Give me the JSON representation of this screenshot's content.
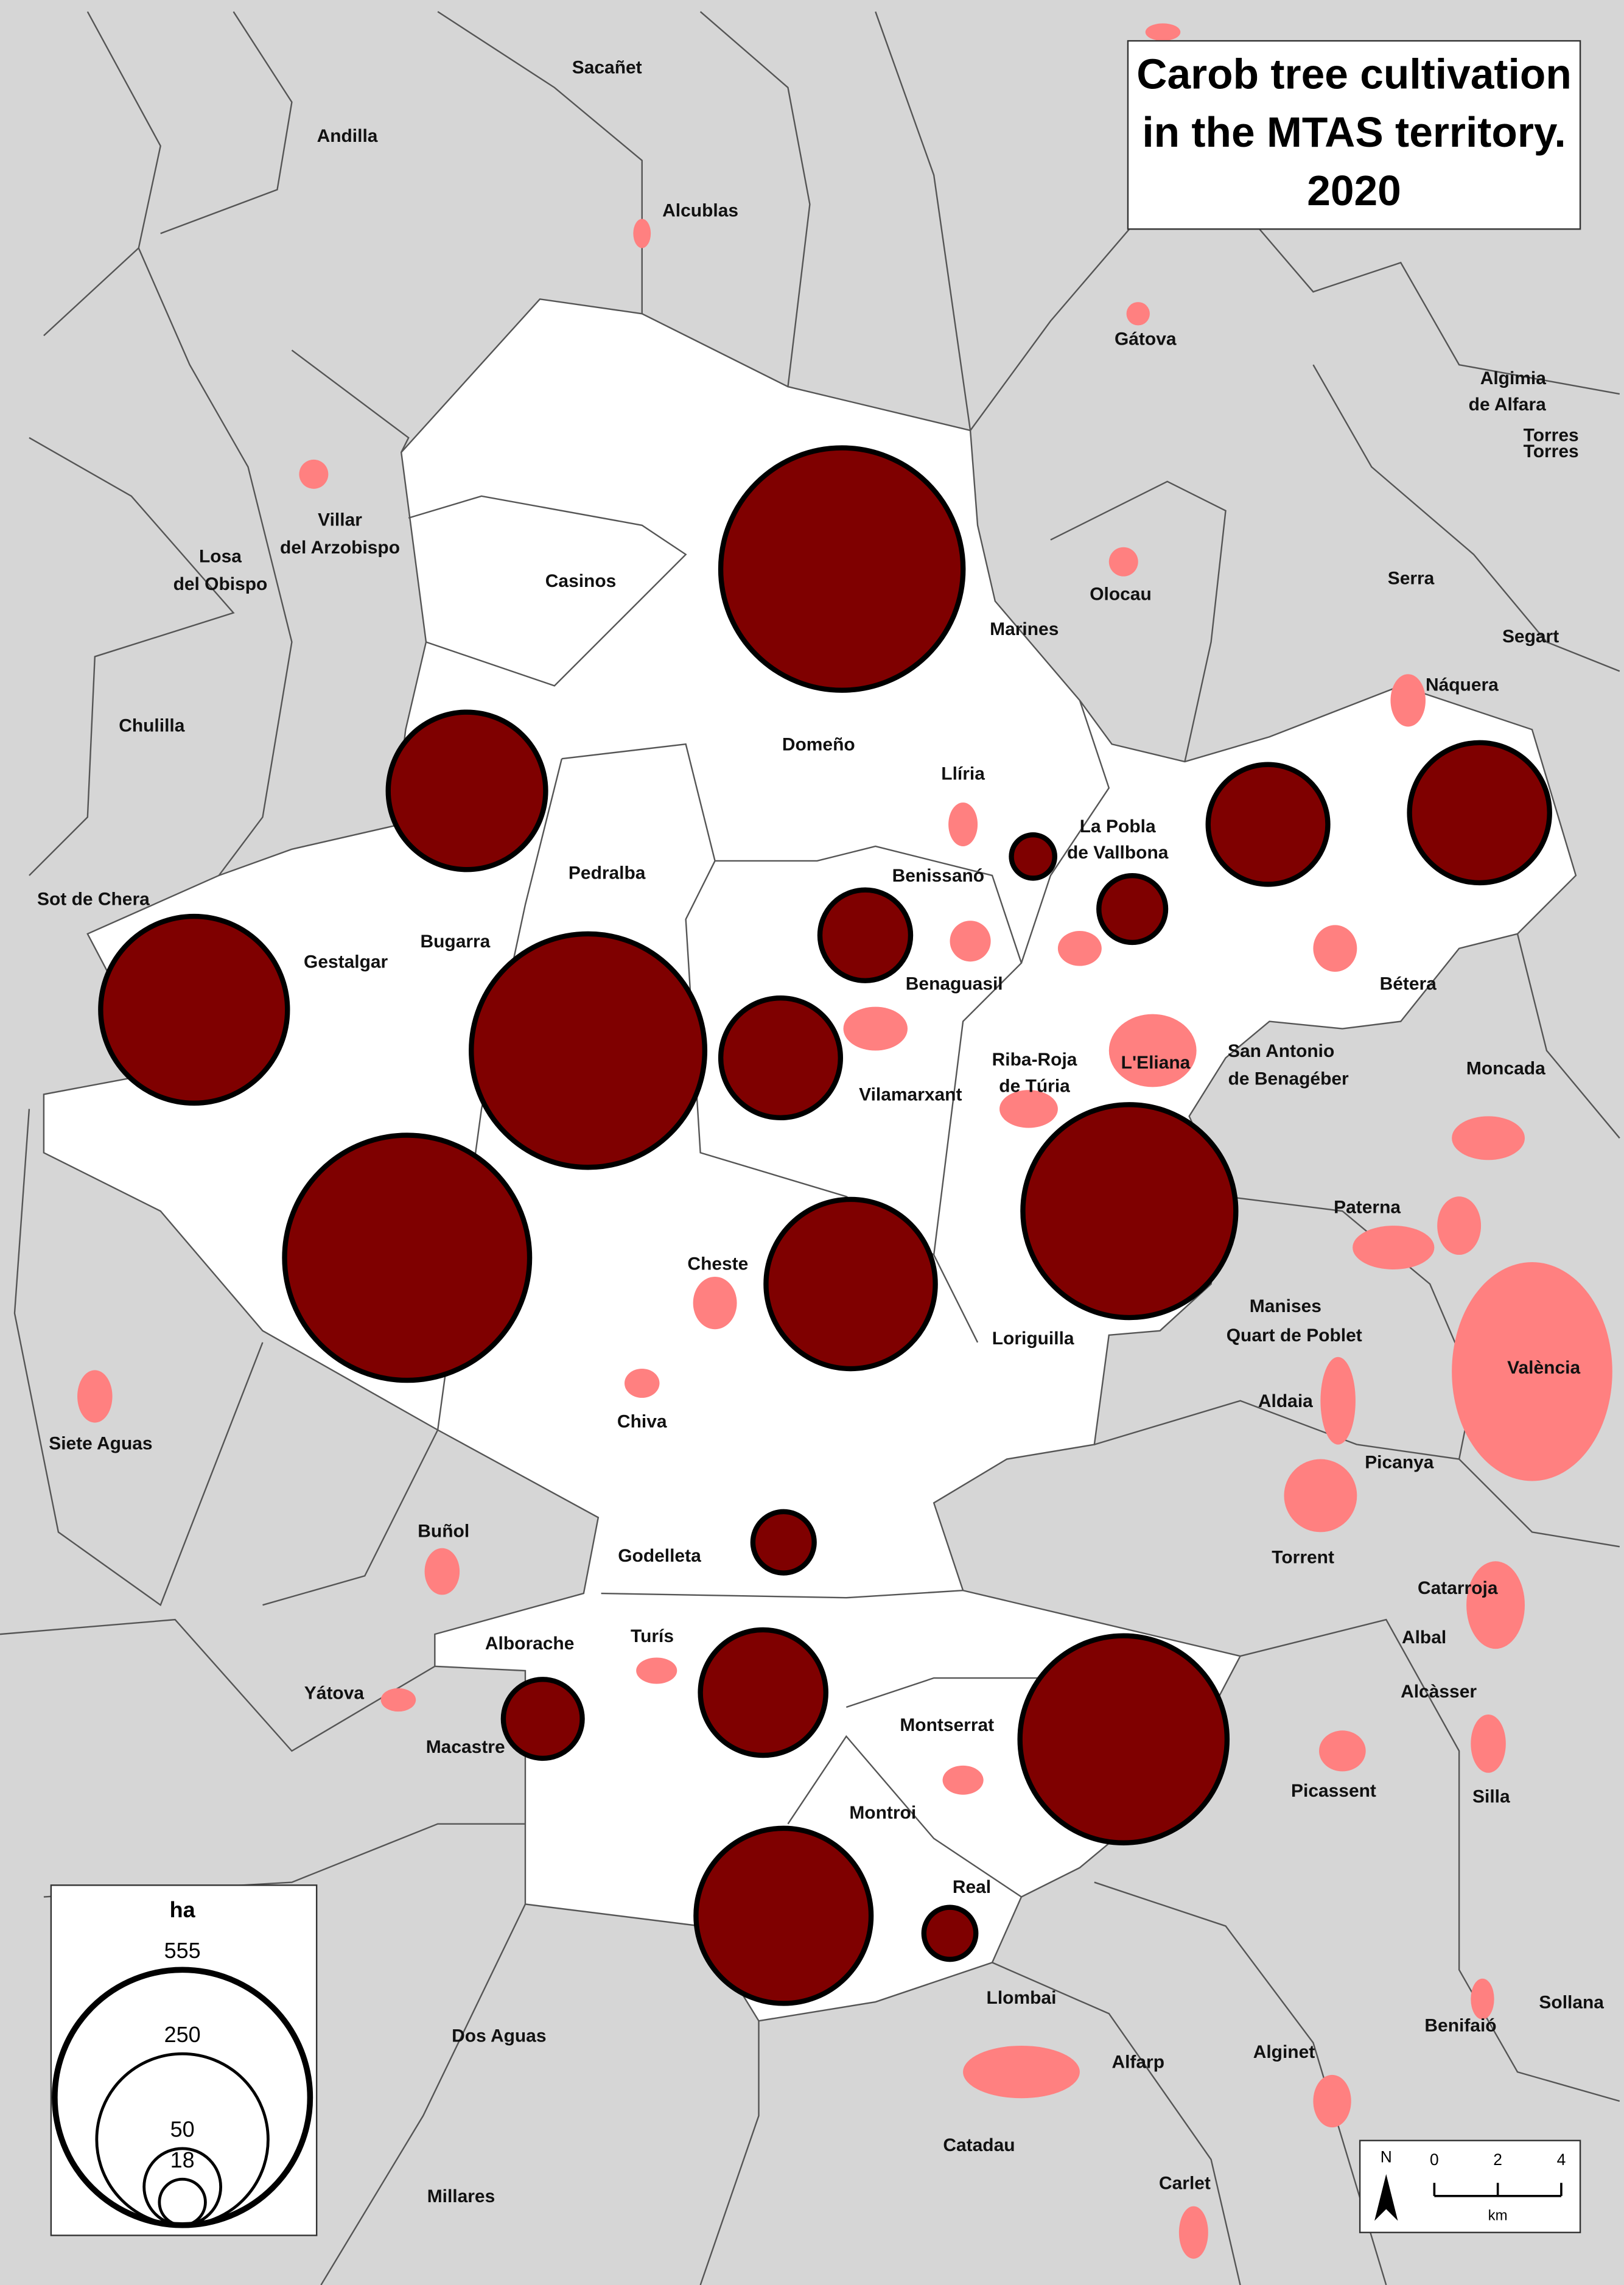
{
  "title": [
    "Carob tree cultivation",
    "in the MTAS territory.",
    "2020"
  ],
  "labels": [
    "Sacañet",
    "Andilla",
    "Alcublas",
    "Gátova",
    "Algimia",
    "de Alfara",
    "Torres",
    "Torres",
    "Villar",
    "del Arzobispo",
    "Losa",
    "del Obispo",
    "Casinos",
    "Olocau",
    "Serra",
    "Marines",
    "Segart",
    "Náquera",
    "Chulilla",
    "Domeño",
    "Llíria",
    "La Pobla",
    "de Vallbona",
    "Benissanó",
    "Pedralba",
    "Sot de Chera",
    "Bugarra",
    "Gestalgar",
    "Bétera",
    "Benaguasil",
    "Riba-Roja",
    "de Túria",
    "L'Eliana",
    "San Antonio",
    "de Benagéber",
    "Moncada",
    "Vilamarxant",
    "Paterna",
    "Cheste",
    "Manises",
    "Quart de Poblet",
    "Loriguilla",
    "València",
    "Aldaia",
    "Chiva",
    "Siete Aguas",
    "Picanya",
    "Buñol",
    "Godelleta",
    "Torrent",
    "Catarroja",
    "Turís",
    "Alborache",
    "Albal",
    "Yátova",
    "Alcàsser",
    "Montserrat",
    "Macastre",
    "Picassent",
    "Silla",
    "Montroi",
    "Real",
    "Llombai",
    "Sollana",
    "Benifaió",
    "Dos Aguas",
    "Alfarp",
    "Alginet",
    "Catadau",
    "Carlet",
    "Millares"
  ],
  "circles": [
    500,
    211,
    297,
    464,
    122,
    70,
    16,
    38,
    122,
    167,
    511,
    244,
    386,
    32,
    53,
    134,
    365,
    261,
    23
  ],
  "legend": {
    "title": "ha",
    "values": [
      555,
      250,
      50,
      18
    ]
  },
  "scale_bar": {
    "north": "N",
    "ticks": [
      0,
      2,
      4
    ],
    "unit": "km"
  }
}
